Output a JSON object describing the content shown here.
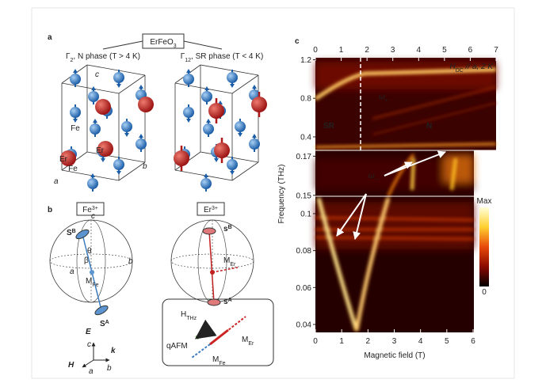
{
  "panel_a": {
    "label": "a",
    "compound": {
      "main": "ErFeO",
      "sub": "3"
    },
    "phase_left": {
      "main": "Γ",
      "sub": "2",
      "text": ", N phase (T > 4 K)"
    },
    "phase_right": {
      "main": "Γ",
      "sub": "12",
      "text": ", SR phase (T < 4 K)"
    },
    "axis_c": "c",
    "axis_b": "b",
    "axis_a": "a",
    "atoms": [
      "Fe",
      "Er",
      "Er",
      "Fe"
    ]
  },
  "panel_b": {
    "label": "b",
    "fe": {
      "main": "Fe",
      "sup": "3+"
    },
    "er": {
      "main": "Er",
      "sup": "3+"
    },
    "fe_sphere": {
      "sb": {
        "main": "S",
        "sup": "B"
      },
      "sa": {
        "main": "S",
        "sup": "A"
      },
      "c": "c",
      "a": "a",
      "b": "b",
      "theta": "θ",
      "beta": "β",
      "m": {
        "main": "M",
        "sub": "Fe"
      }
    },
    "er_sphere": {
      "sb": {
        "main": "s",
        "sup": "B"
      },
      "sa": {
        "main": "s",
        "sup": "A"
      },
      "m": {
        "main": "M",
        "sub": "Er"
      }
    },
    "coords": {
      "E": "E",
      "k": "k",
      "H": "H",
      "c": "c",
      "a": "a",
      "b": "b"
    },
    "legend": {
      "h": {
        "main": "H",
        "sub": "THz"
      },
      "mer": {
        "main": "M",
        "sub": "Er"
      },
      "mfe": {
        "main": "M",
        "sub": "Fe"
      },
      "qafm": "qAFM"
    }
  },
  "panel_c": {
    "label": "c",
    "xlabel": "Magnetic field (T)",
    "ylabel": "Frequency (THz)",
    "condition": {
      "main": "H",
      "sub": "DC",
      "text": " // a, 2 K"
    },
    "omega_plus": {
      "main": "ω",
      "sub": "+"
    },
    "omega_minus": {
      "main": "ω",
      "sub": "−"
    },
    "phase_sr": "SR",
    "phase_n": "N",
    "top_xlim": [
      0,
      7
    ],
    "top_xticks": [
      0,
      1,
      2,
      3,
      4,
      5,
      6,
      7
    ],
    "xlim": [
      0,
      6
    ],
    "xticks": [
      0,
      1,
      2,
      3,
      4,
      5,
      6
    ],
    "ylim_top": [
      0.26,
      1.22
    ],
    "yticks_top": [
      0.4,
      0.8,
      1.2
    ],
    "ylim_mid": [
      0.1495,
      0.173
    ],
    "yticks_mid": [
      0.15,
      0.17
    ],
    "ylim_bottom": [
      0.0357,
      0.1094
    ],
    "yticks_bottom": [
      0.04,
      0.06,
      0.08,
      0.1
    ],
    "colorbar_max": "Max",
    "colorbar_min": "0"
  }
}
